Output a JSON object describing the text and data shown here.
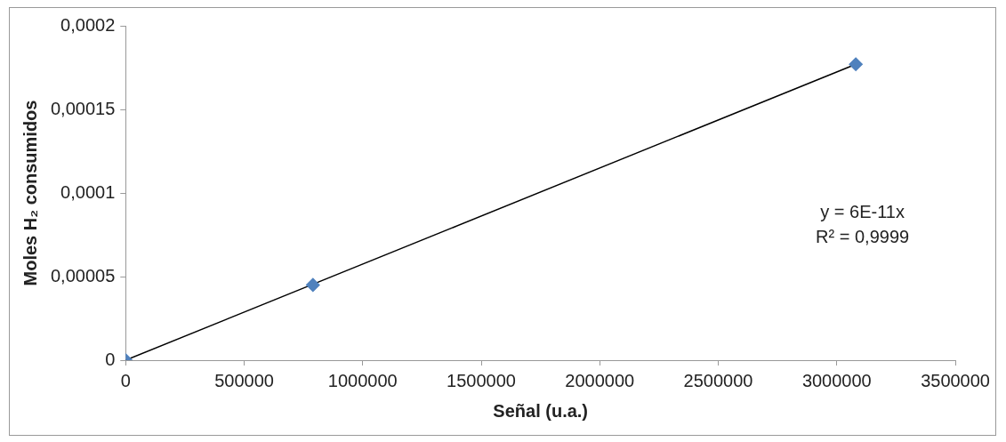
{
  "chart_data": {
    "type": "scatter",
    "xlabel": "Señal (u.a.)",
    "ylabel": "Moles H₂ consumidos",
    "series": [
      {
        "color": "#4f81bd",
        "x": [
          0,
          790000,
          3080000
        ],
        "values": [
          0,
          4.5e-05,
          0.000177
        ],
        "marker": "diamond"
      },
      {
        "type": "line",
        "color": "#000000",
        "x": [
          0,
          3080000
        ],
        "values": [
          0,
          0.000177
        ],
        "marker": "none",
        "line_style": "solid"
      }
    ],
    "xlim": [
      0,
      3500000
    ],
    "xticks": [
      0,
      500000,
      1000000,
      1500000,
      2000000,
      2500000,
      3000000,
      3500000
    ],
    "ylim": [
      0,
      0.0002
    ],
    "yticks": [
      0,
      {
        "value": 5e-05,
        "label": "0,00005"
      },
      {
        "value": 0.0001,
        "label": "0,0001"
      },
      {
        "value": 0.00015,
        "label": "0,00015"
      },
      {
        "value": 0.0002,
        "label": "0,0002"
      }
    ],
    "grid": false,
    "legend": false,
    "annotations": [
      "y = 6E-11x",
      "R² = 0,9999"
    ]
  }
}
